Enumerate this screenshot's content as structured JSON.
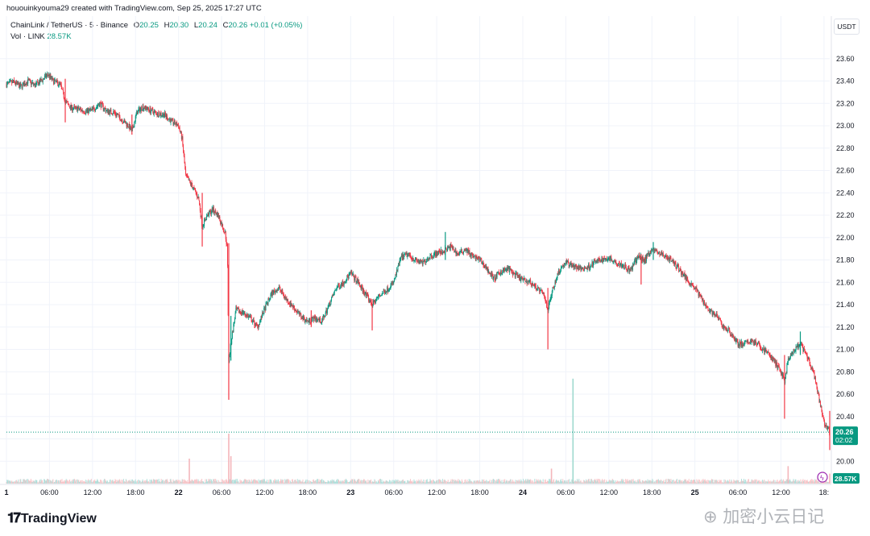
{
  "header": {
    "caption": "hououinkyouma29 created with TradingView.com, Sep 25, 2025 17:27 UTC",
    "symbol": "ChainLink / TetherUS · 5 · Binance",
    "o_label": "O",
    "o_value": "20.25",
    "h_label": "H",
    "h_value": "20.30",
    "l_label": "L",
    "l_value": "20.24",
    "c_label": "C",
    "c_value": "20.26",
    "change": "+0.01 (+0.05%)",
    "vol_label": "Vol · LINK",
    "vol_value": "28.57K"
  },
  "currency": "USDT",
  "price_tag": {
    "price": "20.26",
    "countdown": "02:02"
  },
  "volume_tag": "28.57K",
  "brand": "TradingView",
  "watermark": "加密小云日记",
  "colors": {
    "up": "#089981",
    "down": "#f23645",
    "grid": "#f0f3fa",
    "text": "#131722"
  },
  "chart_data": {
    "type": "candlestick",
    "symbol": "LINK/USDT",
    "interval": "5",
    "y_ticks": [
      "23.60",
      "23.40",
      "23.20",
      "23.00",
      "22.80",
      "22.60",
      "22.40",
      "22.20",
      "22.00",
      "21.80",
      "21.60",
      "21.40",
      "21.20",
      "21.00",
      "20.80",
      "20.60",
      "20.40",
      "20.20",
      "20.00"
    ],
    "ylim": [
      19.8,
      23.8
    ],
    "x_ticks": [
      {
        "label": "1",
        "t": 0
      },
      {
        "label": "06:00",
        "t": 6
      },
      {
        "label": "12:00",
        "t": 12
      },
      {
        "label": "18:00",
        "t": 18
      },
      {
        "label": "22",
        "t": 24
      },
      {
        "label": "06:00",
        "t": 30
      },
      {
        "label": "12:00",
        "t": 36
      },
      {
        "label": "18:00",
        "t": 42
      },
      {
        "label": "23",
        "t": 48
      },
      {
        "label": "06:00",
        "t": 54
      },
      {
        "label": "12:00",
        "t": 60
      },
      {
        "label": "18:00",
        "t": 66
      },
      {
        "label": "24",
        "t": 72
      },
      {
        "label": "06:00",
        "t": 78
      },
      {
        "label": "12:00",
        "t": 84
      },
      {
        "label": "18:00",
        "t": 90
      },
      {
        "label": "25",
        "t": 96
      },
      {
        "label": "06:00",
        "t": 102
      },
      {
        "label": "12:00",
        "t": 108
      },
      {
        "label": "18:",
        "t": 114
      }
    ],
    "xlim": [
      0,
      114.8
    ],
    "price_path": [
      [
        0,
        23.37
      ],
      [
        1,
        23.39
      ],
      [
        2,
        23.35
      ],
      [
        3,
        23.4
      ],
      [
        4,
        23.36
      ],
      [
        5,
        23.41
      ],
      [
        5.8,
        23.46
      ],
      [
        6.5,
        23.4
      ],
      [
        7.5,
        23.37
      ],
      [
        8.2,
        23.22
      ],
      [
        9,
        23.16
      ],
      [
        10,
        23.15
      ],
      [
        11,
        23.13
      ],
      [
        12,
        23.14
      ],
      [
        13,
        23.2
      ],
      [
        14,
        23.13
      ],
      [
        15,
        23.12
      ],
      [
        16,
        23.06
      ],
      [
        17,
        23.0
      ],
      [
        17.5,
        22.95
      ],
      [
        18.2,
        23.12
      ],
      [
        19,
        23.17
      ],
      [
        20,
        23.14
      ],
      [
        21,
        23.11
      ],
      [
        22,
        23.1
      ],
      [
        23,
        23.04
      ],
      [
        24,
        23.0
      ],
      [
        24.5,
        22.88
      ],
      [
        25,
        22.55
      ],
      [
        25.5,
        22.5
      ],
      [
        26,
        22.45
      ],
      [
        26.8,
        22.35
      ],
      [
        27.3,
        22.1
      ],
      [
        28,
        22.2
      ],
      [
        28.8,
        22.25
      ],
      [
        29.5,
        22.2
      ],
      [
        30,
        22.12
      ],
      [
        30.5,
        22.04
      ],
      [
        30.8,
        21.9
      ],
      [
        31,
        20.9
      ],
      [
        31.4,
        21.1
      ],
      [
        32,
        21.35
      ],
      [
        33,
        21.33
      ],
      [
        34,
        21.28
      ],
      [
        35,
        21.2
      ],
      [
        36,
        21.36
      ],
      [
        37,
        21.5
      ],
      [
        38,
        21.55
      ],
      [
        39,
        21.45
      ],
      [
        40,
        21.38
      ],
      [
        41,
        21.3
      ],
      [
        42,
        21.25
      ],
      [
        43,
        21.28
      ],
      [
        44,
        21.25
      ],
      [
        45,
        21.4
      ],
      [
        46,
        21.55
      ],
      [
        47,
        21.6
      ],
      [
        48,
        21.68
      ],
      [
        49,
        21.6
      ],
      [
        50,
        21.5
      ],
      [
        51,
        21.4
      ],
      [
        52,
        21.48
      ],
      [
        53,
        21.53
      ],
      [
        54,
        21.6
      ],
      [
        55,
        21.82
      ],
      [
        56,
        21.85
      ],
      [
        57,
        21.8
      ],
      [
        58,
        21.77
      ],
      [
        59,
        21.83
      ],
      [
        60,
        21.86
      ],
      [
        61,
        21.88
      ],
      [
        62,
        21.92
      ],
      [
        63,
        21.85
      ],
      [
        64,
        21.9
      ],
      [
        65,
        21.83
      ],
      [
        66,
        21.8
      ],
      [
        67,
        21.72
      ],
      [
        68,
        21.63
      ],
      [
        69,
        21.7
      ],
      [
        70,
        21.72
      ],
      [
        71,
        21.66
      ],
      [
        72,
        21.62
      ],
      [
        73,
        21.6
      ],
      [
        74,
        21.55
      ],
      [
        75,
        21.48
      ],
      [
        75.5,
        21.35
      ],
      [
        76,
        21.5
      ],
      [
        77,
        21.7
      ],
      [
        78,
        21.78
      ],
      [
        79,
        21.75
      ],
      [
        80,
        21.72
      ],
      [
        81,
        21.73
      ],
      [
        82,
        21.78
      ],
      [
        83,
        21.8
      ],
      [
        84,
        21.82
      ],
      [
        85,
        21.78
      ],
      [
        86,
        21.75
      ],
      [
        87,
        21.7
      ],
      [
        88,
        21.83
      ],
      [
        89,
        21.8
      ],
      [
        90,
        21.9
      ],
      [
        91,
        21.86
      ],
      [
        92,
        21.83
      ],
      [
        93,
        21.78
      ],
      [
        94,
        21.7
      ],
      [
        95,
        21.62
      ],
      [
        96,
        21.55
      ],
      [
        97,
        21.45
      ],
      [
        98,
        21.35
      ],
      [
        99,
        21.3
      ],
      [
        100,
        21.2
      ],
      [
        101,
        21.15
      ],
      [
        102,
        21.05
      ],
      [
        103,
        21.05
      ],
      [
        104,
        21.08
      ],
      [
        105,
        21.03
      ],
      [
        106,
        20.98
      ],
      [
        107,
        20.9
      ],
      [
        108,
        20.8
      ],
      [
        108.5,
        20.72
      ],
      [
        109,
        20.9
      ],
      [
        110,
        21.0
      ],
      [
        110.7,
        21.05
      ],
      [
        111.5,
        20.95
      ],
      [
        112,
        20.88
      ],
      [
        112.5,
        20.8
      ],
      [
        113,
        20.65
      ],
      [
        113.5,
        20.5
      ],
      [
        114,
        20.35
      ],
      [
        114.8,
        20.26
      ]
    ],
    "spikes": [
      {
        "t": 8.2,
        "high": 23.42,
        "low": 23.03,
        "up": false
      },
      {
        "t": 17.5,
        "high": 23.1,
        "low": 22.92,
        "up": false
      },
      {
        "t": 27.3,
        "high": 22.4,
        "low": 21.92,
        "up": false
      },
      {
        "t": 31.0,
        "high": 21.95,
        "low": 20.55,
        "up": false
      },
      {
        "t": 31.3,
        "high": 21.3,
        "low": 20.9,
        "up": true
      },
      {
        "t": 42.5,
        "high": 21.35,
        "low": 21.2,
        "up": false
      },
      {
        "t": 51.0,
        "high": 21.45,
        "low": 21.17,
        "up": false
      },
      {
        "t": 61.2,
        "high": 22.05,
        "low": 21.8,
        "up": true
      },
      {
        "t": 75.5,
        "high": 21.55,
        "low": 21.0,
        "up": false
      },
      {
        "t": 88.5,
        "high": 21.85,
        "low": 21.58,
        "up": false
      },
      {
        "t": 90.2,
        "high": 21.96,
        "low": 21.8,
        "up": true
      },
      {
        "t": 108.5,
        "high": 20.95,
        "low": 20.38,
        "up": false
      },
      {
        "t": 110.7,
        "high": 21.16,
        "low": 20.95,
        "up": true
      },
      {
        "t": 114.8,
        "high": 20.45,
        "low": 20.1,
        "up": false
      }
    ],
    "volume_spikes": [
      {
        "t": 25.5,
        "value": 0.5
      },
      {
        "t": 31.0,
        "value": 1.0
      },
      {
        "t": 31.3,
        "value": 0.55
      },
      {
        "t": 79.0,
        "value": 2.1
      },
      {
        "t": 76.0,
        "value": 0.3
      },
      {
        "t": 109.0,
        "value": 0.35
      },
      {
        "t": 114.8,
        "value": 0.2
      }
    ],
    "last_price": 20.26,
    "last_volume": "28.57K"
  }
}
